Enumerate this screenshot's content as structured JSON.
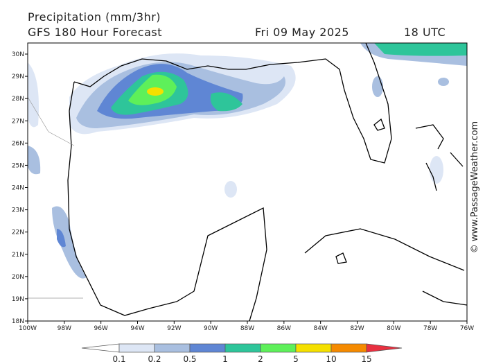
{
  "header": {
    "title": "Precipitation (mm/3hr)",
    "model": "GFS 180 Hour Forecast",
    "date": "Fri 09 May 2025",
    "time": "18 UTC"
  },
  "map": {
    "lat_labels": [
      "30N",
      "29N",
      "28N",
      "27N",
      "26N",
      "25N",
      "24N",
      "23N",
      "22N",
      "21N",
      "20N",
      "19N",
      "18N"
    ],
    "lon_labels": [
      "100W",
      "98W",
      "96W",
      "94W",
      "92W",
      "90W",
      "88W",
      "86W",
      "84W",
      "82W",
      "80W",
      "78W",
      "76W"
    ]
  },
  "legend": {
    "labels": [
      "0.1",
      "0.2",
      "0.5",
      "1",
      "2",
      "5",
      "10",
      "15"
    ]
  },
  "credit": "© www.PassageWeather.com"
}
